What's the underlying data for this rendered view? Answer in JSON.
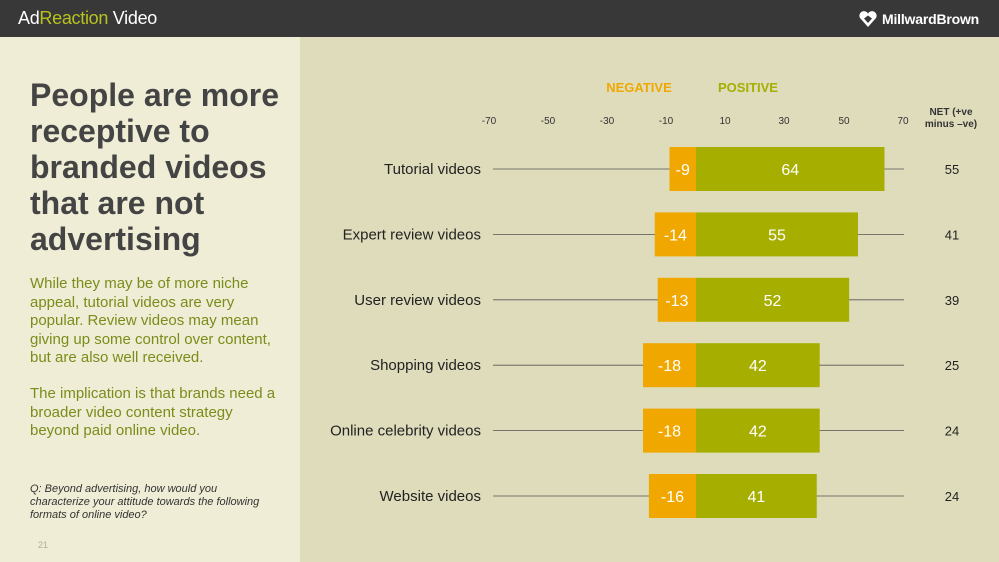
{
  "header": {
    "brand_prefix": "Ad",
    "brand_mid": "Reaction",
    "brand_suffix": " Video",
    "logo_text": "MillwardBrown",
    "logo_icon": "heart-diamond-icon"
  },
  "left": {
    "headline": "People are more receptive to branded videos that are not advertising",
    "body1": "While they may be of more niche appeal, tutorial videos are very popular. Review videos may mean giving up some control over content, but are also well received.",
    "body2": "The implication is that brands need a broader video content strategy beyond paid online video.",
    "question": "Q:  Beyond advertising, how would you characterize your attitude towards the following formats of online video?",
    "page_number": "21"
  },
  "colors": {
    "negative": "#f0a800",
    "positive": "#a6af00",
    "header_bg": "#383838",
    "panel_bg": "#efedd6",
    "chart_bg": "#dedcbb"
  },
  "chart_data": {
    "type": "bar",
    "orientation": "horizontal-diverging",
    "legend": {
      "negative": "NEGATIVE",
      "positive": "POSITIVE"
    },
    "net_header_line1": "NET (+ve",
    "net_header_line2": "minus –ve)",
    "tick_labels": [
      "-70",
      "-50",
      "-30",
      "-10",
      "10",
      "30",
      "50",
      "70"
    ],
    "categories": [
      "Tutorial videos",
      "Expert review videos",
      "User review videos",
      "Shopping videos",
      "Online celebrity videos",
      "Website videos"
    ],
    "series": [
      {
        "name": "NEGATIVE",
        "values": [
          -9,
          -14,
          -13,
          -18,
          -18,
          -16
        ]
      },
      {
        "name": "POSITIVE",
        "values": [
          64,
          55,
          52,
          42,
          42,
          41
        ]
      }
    ],
    "net": [
      "55",
      "41",
      "39",
      "25",
      "24",
      "24"
    ],
    "xlim": [
      -70,
      70
    ]
  }
}
